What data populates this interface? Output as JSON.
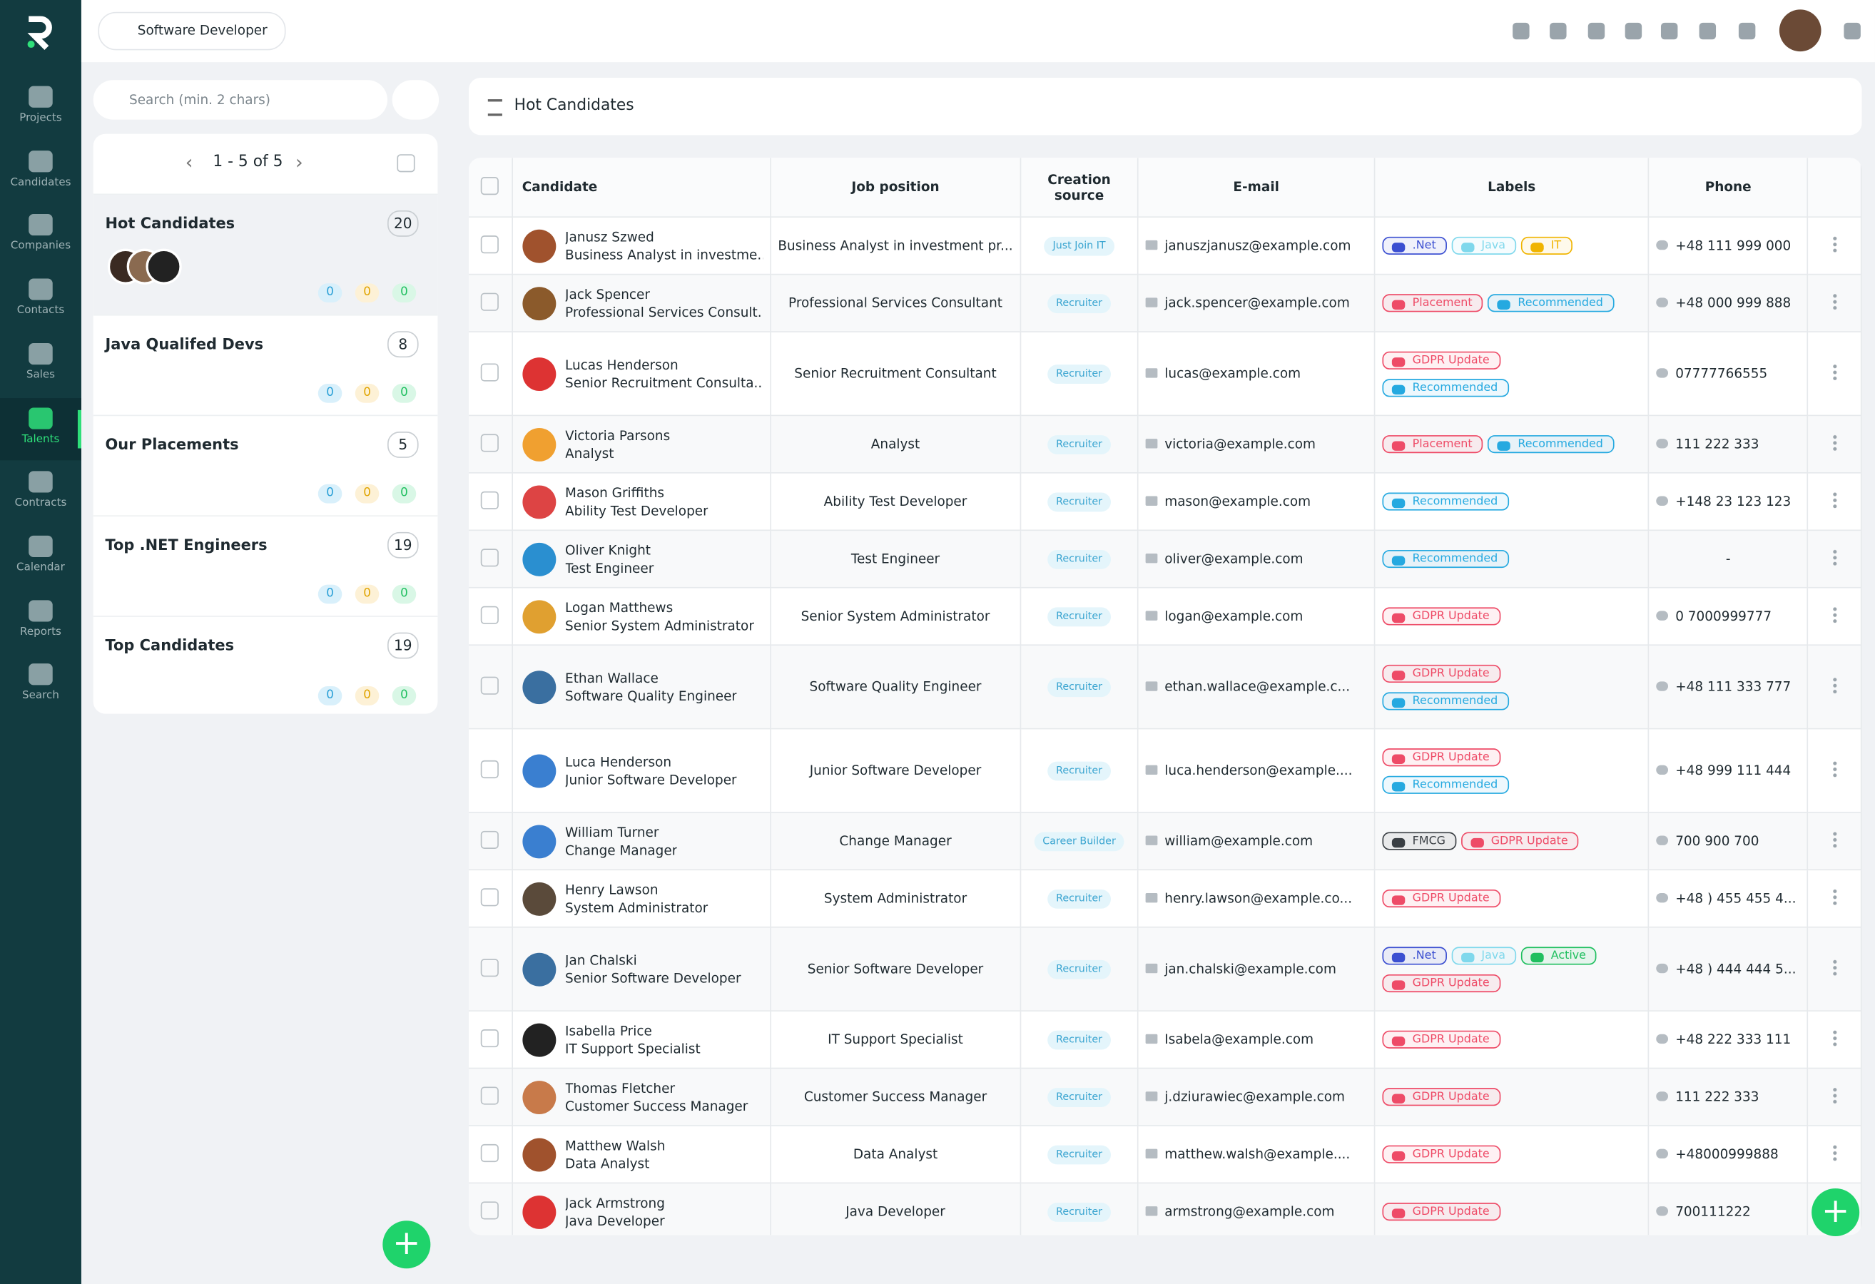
{
  "header": {
    "workspace": "Software Developer"
  },
  "nav": [
    "Projects",
    "Candidates",
    "Companies",
    "Contacts",
    "Sales",
    "Talents",
    "Contracts",
    "Calendar",
    "Reports",
    "Search"
  ],
  "sidebar": {
    "search_placeholder": "Search (min. 2 chars)",
    "pagination": "1 - 5 of 5",
    "lists": [
      {
        "name": "Hot Candidates",
        "count": 20,
        "counters": [
          0,
          0,
          0
        ]
      },
      {
        "name": "Java Qualifed Devs",
        "count": 8,
        "counters": [
          0,
          0,
          0
        ]
      },
      {
        "name": "Our Placements",
        "count": 5,
        "counters": [
          0,
          0,
          0
        ]
      },
      {
        "name": "Top .NET Engineers",
        "count": 19,
        "counters": [
          0,
          0,
          0
        ]
      },
      {
        "name": "Top Candidates",
        "count": 19,
        "counters": [
          0,
          0,
          0
        ]
      }
    ]
  },
  "table": {
    "title": "Hot Candidates",
    "columns": [
      "Candidate",
      "Job position",
      "Creation source",
      "E-mail",
      "Labels",
      "Phone"
    ],
    "rows": [
      {
        "name": "Janusz Szwed",
        "title": "Business Analyst in investme...",
        "job": "Business Analyst in investment pr...",
        "source": "Just Join IT",
        "email": "januszjanusz@example.com",
        "labels": [
          [
            {
              "text": ".Net",
              "color": "#3b4fd1"
            },
            {
              "text": "Java",
              "color": "#7fd8ec"
            },
            {
              "text": "IT",
              "color": "#f0b400"
            }
          ]
        ],
        "phone": "+48 111 999 000"
      },
      {
        "name": "Jack Spencer",
        "title": "Professional Services Consult...",
        "job": "Professional Services Consultant",
        "source": "Recruiter",
        "email": "jack.spencer@example.com",
        "labels": [
          [
            {
              "text": "Placement",
              "color": "#ee4b67"
            },
            {
              "text": "Recommended",
              "color": "#25a9e0"
            }
          ]
        ],
        "phone": "+48 000 999 888"
      },
      {
        "name": "Lucas Henderson",
        "title": "Senior Recruitment Consulta...",
        "job": "Senior Recruitment Consultant",
        "source": "Recruiter",
        "email": "lucas@example.com",
        "labels": [
          [
            {
              "text": "GDPR Update",
              "color": "#ee4b67"
            }
          ],
          [
            {
              "text": "Recommended",
              "color": "#25a9e0"
            }
          ]
        ],
        "phone": "07777766555"
      },
      {
        "name": "Victoria Parsons",
        "title": "Analyst",
        "job": "Analyst",
        "source": "Recruiter",
        "email": "victoria@example.com",
        "labels": [
          [
            {
              "text": "Placement",
              "color": "#ee4b67"
            },
            {
              "text": "Recommended",
              "color": "#25a9e0"
            }
          ]
        ],
        "phone": "111 222 333"
      },
      {
        "name": "Mason Griffiths",
        "title": "Ability Test Developer",
        "job": "Ability Test Developer",
        "source": "Recruiter",
        "email": "mason@example.com",
        "labels": [
          [
            {
              "text": "Recommended",
              "color": "#25a9e0"
            }
          ]
        ],
        "phone": "+148 23 123 123"
      },
      {
        "name": "Oliver Knight",
        "title": "Test Engineer",
        "job": "Test Engineer",
        "source": "Recruiter",
        "email": "oliver@example.com",
        "labels": [
          [
            {
              "text": "Recommended",
              "color": "#25a9e0"
            }
          ]
        ],
        "phone": "-"
      },
      {
        "name": "Logan Matthews",
        "title": "Senior System Administrator",
        "job": "Senior System Administrator",
        "source": "Recruiter",
        "email": "logan@example.com",
        "labels": [
          [
            {
              "text": "GDPR Update",
              "color": "#ee4b67"
            }
          ]
        ],
        "phone": "0 7000999777"
      },
      {
        "name": "Ethan Wallace",
        "title": "Software Quality Engineer",
        "job": "Software Quality Engineer",
        "source": "Recruiter",
        "email": "ethan.wallace@example.c...",
        "labels": [
          [
            {
              "text": "GDPR Update",
              "color": "#ee4b67"
            }
          ],
          [
            {
              "text": "Recommended",
              "color": "#25a9e0"
            }
          ]
        ],
        "phone": "+48 111 333 777"
      },
      {
        "name": "Luca Henderson",
        "title": "Junior Software Developer",
        "job": "Junior Software Developer",
        "source": "Recruiter",
        "email": "luca.henderson@example....",
        "labels": [
          [
            {
              "text": "GDPR Update",
              "color": "#ee4b67"
            }
          ],
          [
            {
              "text": "Recommended",
              "color": "#25a9e0"
            }
          ]
        ],
        "phone": "+48 999 111 444"
      },
      {
        "name": "William Turner",
        "title": "Change Manager",
        "job": "Change Manager",
        "source": "Career Builder",
        "email": "william@example.com",
        "labels": [
          [
            {
              "text": "FMCG",
              "color": "#3a3f44"
            },
            {
              "text": "GDPR Update",
              "color": "#ee4b67"
            }
          ]
        ],
        "phone": "700 900 700"
      },
      {
        "name": "Henry Lawson",
        "title": "System Administrator",
        "job": "System Administrator",
        "source": "Recruiter",
        "email": "henry.lawson@example.co...",
        "labels": [
          [
            {
              "text": "GDPR Update",
              "color": "#ee4b67"
            }
          ]
        ],
        "phone": "+48 ) 455 455 4..."
      },
      {
        "name": "Jan Chalski",
        "title": "Senior Software Developer",
        "job": "Senior Software Developer",
        "source": "Recruiter",
        "email": "jan.chalski@example.com",
        "labels": [
          [
            {
              "text": ".Net",
              "color": "#3b4fd1"
            },
            {
              "text": "Java",
              "color": "#7fd8ec"
            },
            {
              "text": "Active",
              "color": "#1fbf5f"
            }
          ],
          [
            {
              "text": "GDPR Update",
              "color": "#ee4b67"
            }
          ]
        ],
        "phone": "+48 ) 444 444 5..."
      },
      {
        "name": "Isabella Price",
        "title": "IT Support Specialist",
        "job": "IT Support Specialist",
        "source": "Recruiter",
        "email": "Isabela@example.com",
        "labels": [
          [
            {
              "text": "GDPR Update",
              "color": "#ee4b67"
            }
          ]
        ],
        "phone": "+48 222 333 111"
      },
      {
        "name": "Thomas Fletcher",
        "title": "Customer Success Manager",
        "job": "Customer Success Manager",
        "source": "Recruiter",
        "email": "j.dziurawiec@example.com",
        "labels": [
          [
            {
              "text": "GDPR Update",
              "color": "#ee4b67"
            }
          ]
        ],
        "phone": "111 222 333"
      },
      {
        "name": "Matthew Walsh",
        "title": "Data Analyst",
        "job": "Data Analyst",
        "source": "Recruiter",
        "email": "matthew.walsh@example....",
        "labels": [
          [
            {
              "text": "GDPR Update",
              "color": "#ee4b67"
            }
          ]
        ],
        "phone": "+48000999888"
      },
      {
        "name": "Jack Armstrong",
        "title": "Java Developer",
        "job": "Java Developer",
        "source": "Recruiter",
        "email": "armstrong@example.com",
        "labels": [
          [
            {
              "text": "GDPR Update",
              "color": "#ee4b67"
            }
          ]
        ],
        "phone": "700111222"
      }
    ]
  }
}
